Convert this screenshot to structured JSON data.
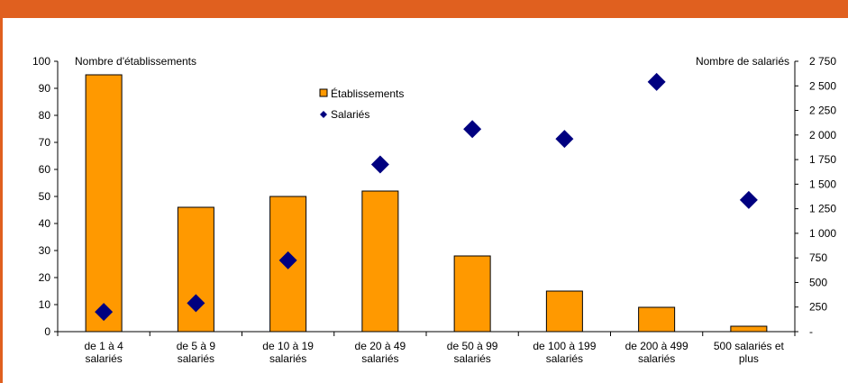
{
  "colors": {
    "header_bar": "#E0601F",
    "bar_fill": "#FF9900",
    "bar_stroke": "#000000",
    "marker": "#000080"
  },
  "chart_data": {
    "type": "bar",
    "title": "",
    "categories": [
      [
        "de 1 à 4",
        "salariés"
      ],
      [
        "de 5 à 9",
        "salariés"
      ],
      [
        "de 10 à 19",
        "salariés"
      ],
      [
        "de 20 à 49",
        "salariés"
      ],
      [
        "de 50 à 99",
        "salariés"
      ],
      [
        "de 100 à 199",
        "salariés"
      ],
      [
        "de 200 à 499",
        "salariés"
      ],
      [
        "500 salariés et",
        "plus"
      ]
    ],
    "left_axis": {
      "label": "Nombre d'établissements",
      "ylim": [
        0,
        100
      ],
      "ticks": [
        "0",
        "10",
        "20",
        "30",
        "40",
        "50",
        "60",
        "70",
        "80",
        "90",
        "100"
      ]
    },
    "right_axis": {
      "label": "Nombre de salariés",
      "ylim": [
        0,
        2750
      ],
      "ticks": [
        "-",
        "250",
        "500",
        "750",
        "1 000",
        "1 250",
        "1 500",
        "1 750",
        "2 000",
        "2 250",
        "2 500",
        "2 750"
      ]
    },
    "series": [
      {
        "name": "Établissements",
        "type": "bar",
        "axis": "left",
        "values": [
          95,
          46,
          50,
          52,
          28,
          15,
          9,
          2
        ]
      },
      {
        "name": "Salariés",
        "type": "scatter",
        "marker": "diamond",
        "axis": "right",
        "values": [
          200,
          290,
          725,
          1700,
          2060,
          1960,
          2540,
          1340
        ]
      }
    ],
    "legend": {
      "position": "top-center",
      "entries": [
        "Établissements",
        "Salariés"
      ]
    },
    "grid": false
  }
}
